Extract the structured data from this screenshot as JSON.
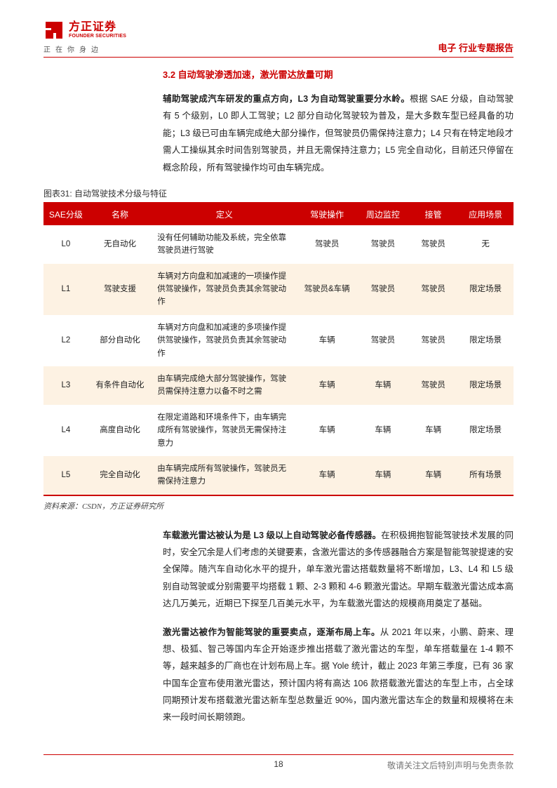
{
  "header": {
    "logo_cn": "方正证券",
    "logo_en": "FOUNDER SECURITIES",
    "logo_sub": "正在你身边",
    "right": "电子 行业专题报告"
  },
  "section_title": "3.2 自动驾驶渗透加速，激光雷达放量可期",
  "para1_lead": "辅助驾驶成汽车研发的重点方向，L3 为自动驾驶重要分水岭。",
  "para1_body": "根据 SAE 分级，自动驾驶有 5 个级别，L0 即人工驾驶；L2 部分自动化驾驶较为普及，是大多数车型已经具备的功能；L3 级已可由车辆完成绝大部分操作，但驾驶员仍需保持注意力；L4 只有在特定地段才需人工操纵其余时间告别驾驶员，并且无需保持注意力；L5 完全自动化，目前还只停留在概念阶段，所有驾驶操作均可由车辆完成。",
  "table": {
    "caption": "图表31: 自动驾驶技术分级与特征",
    "header_bg": "#c00000",
    "odd_bg": "#fdf2e3",
    "columns": [
      "SAE分级",
      "名称",
      "定义",
      "驾驶操作",
      "周边监控",
      "接管",
      "应用场景"
    ],
    "rows": [
      [
        "L0",
        "无自动化",
        "没有任何辅助功能及系统，完全依靠驾驶员进行驾驶",
        "驾驶员",
        "驾驶员",
        "驾驶员",
        "无"
      ],
      [
        "L1",
        "驾驶支援",
        "车辆对方向盘和加减速的一项操作提供驾驶操作，驾驶员负责其余驾驶动作",
        "驾驶员&车辆",
        "驾驶员",
        "驾驶员",
        "限定场景"
      ],
      [
        "L2",
        "部分自动化",
        "车辆对方向盘和加减速的多项操作提供驾驶操作，驾驶员负责其余驾驶动作",
        "车辆",
        "驾驶员",
        "驾驶员",
        "限定场景"
      ],
      [
        "L3",
        "有条件自动化",
        "由车辆完成绝大部分驾驶操作，驾驶员需保持注意力以备不时之需",
        "车辆",
        "车辆",
        "驾驶员",
        "限定场景"
      ],
      [
        "L4",
        "高度自动化",
        "在限定道路和环境条件下，由车辆完成所有驾驶操作，驾驶员无需保持注意力",
        "车辆",
        "车辆",
        "车辆",
        "限定场景"
      ],
      [
        "L5",
        "完全自动化",
        "由车辆完成所有驾驶操作，驾驶员无需保持注意力",
        "车辆",
        "车辆",
        "车辆",
        "所有场景"
      ]
    ],
    "source": "资料来源：CSDN，方正证券研究所"
  },
  "para2_lead": "车载激光雷达被认为是 L3 级以上自动驾驶必备传感器。",
  "para2_body": "在积极拥抱智能驾驶技术发展的同时，安全冗余是人们考虑的关键要素，含激光雷达的多传感器融合方案是智能驾驶提速的安全保障。随汽车自动化水平的提升，单车激光雷达搭载数量将不断增加，L3、L4 和 L5 级别自动驾驶或分别需要平均搭载 1 颗、2-3 颗和 4-6 颗激光雷达。早期车载激光雷达成本高达几万美元，近期已下探至几百美元水平，为车载激光雷达的规模商用奠定了基础。",
  "para3_lead": "激光雷达被作为智能驾驶的重要卖点，逐渐布局上车。",
  "para3_body": "从 2021 年以来，小鹏、蔚来、理想、极狐、智己等国内车企开始逐步推出搭载了激光雷达的车型，单车搭载量在 1-4 颗不等，越来越多的厂商也在计划布局上车。据 Yole 统计，截止 2023 年第三季度，已有 36 家中国车企宣布使用激光雷达，预计国内将有高达 106 款搭载激光雷达的车型上市，占全球同期预计发布搭载激光雷达新车型总数量近 90%，国内激光雷达车企的数量和规模将在未来一段时间长期领跑。",
  "footer": {
    "page": "18",
    "disclaimer": "敬请关注文后特别声明与免责条款"
  }
}
